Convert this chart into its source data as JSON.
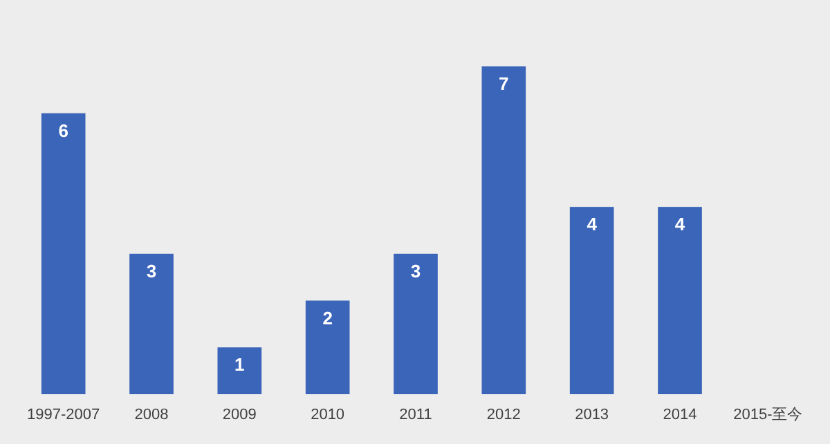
{
  "chart_data": {
    "type": "bar",
    "categories": [
      "1997-2007",
      "2008",
      "2009",
      "2010",
      "2011",
      "2012",
      "2013",
      "2014",
      "2015-至今"
    ],
    "values": [
      6,
      3,
      1,
      2,
      3,
      7,
      4,
      4,
      null
    ],
    "color": "#3b65b9",
    "data_labels": true,
    "grid": false,
    "legend": false
  }
}
